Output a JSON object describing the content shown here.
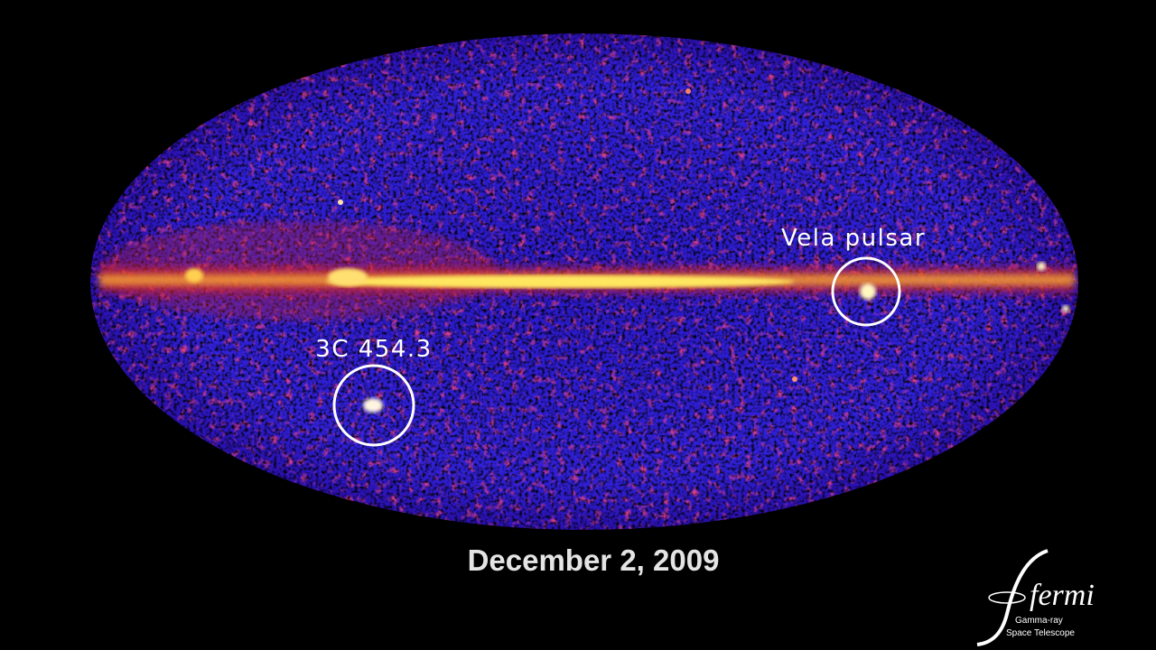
{
  "annotations": [
    {
      "label": "Vela pulsar"
    },
    {
      "label": "3C 454.3"
    }
  ],
  "date": "December 2, 2009",
  "logo": {
    "name": "fermi",
    "line1": "Gamma-ray",
    "line2": "Space Telescope"
  }
}
